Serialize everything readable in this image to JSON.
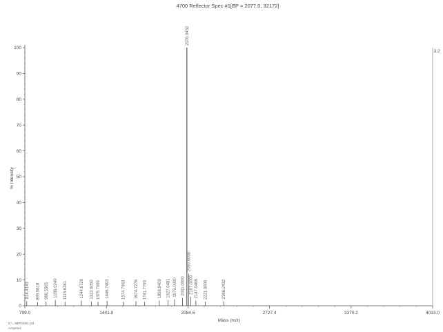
{
  "chart_data": {
    "type": "bar",
    "title": "4700 Reflector Spec #1[BP = 2077.0, 32172]",
    "xlabel": "Mass (m/z)",
    "ylabel": "% Intensity",
    "xlim": [
      799.0,
      4013.0
    ],
    "ylim": [
      0,
      100
    ],
    "xticks": [
      "799.0",
      "1441.8",
      "2084.6",
      "2727.4",
      "3370.2",
      "4013.0"
    ],
    "yticks": [
      "0",
      "10",
      "20",
      "30",
      "40",
      "50",
      "60",
      "70",
      "80",
      "90",
      "100"
    ],
    "right_max_label": "3.2",
    "grid": false,
    "peaks": [
      {
        "mz": 814.4143,
        "intensity": 1.8,
        "label": "814.4143"
      },
      {
        "mz": 899.5618,
        "intensity": 1.4,
        "label": "899.5618"
      },
      {
        "mz": 966.5565,
        "intensity": 1.6,
        "label": "966.5565"
      },
      {
        "mz": 1039.024,
        "intensity": 2.2,
        "label": "1039.0240"
      },
      {
        "mz": 1115.6361,
        "intensity": 1.5,
        "label": "1115.6361"
      },
      {
        "mz": 1244.6728,
        "intensity": 2.0,
        "label": "1244.6728"
      },
      {
        "mz": 1322.605,
        "intensity": 1.7,
        "label": "1322.6050"
      },
      {
        "mz": 1375.7089,
        "intensity": 1.5,
        "label": "1375.7089"
      },
      {
        "mz": 1446.7493,
        "intensity": 1.9,
        "label": "1446.7493"
      },
      {
        "mz": 1574.7983,
        "intensity": 1.6,
        "label": "1574.7983"
      },
      {
        "mz": 1674.7276,
        "intensity": 1.8,
        "label": "1674.7276"
      },
      {
        "mz": 1741.7793,
        "intensity": 1.5,
        "label": "1741.7793"
      },
      {
        "mz": 1858.9409,
        "intensity": 2.0,
        "label": "1858.9409"
      },
      {
        "mz": 1927.0481,
        "intensity": 2.2,
        "label": "1927.0481"
      },
      {
        "mz": 1979.0,
        "intensity": 2.5,
        "label": "1979.0000"
      },
      {
        "mz": 2041.0,
        "intensity": 3.0,
        "label": "2041.0000"
      },
      {
        "mz": 2076.0452,
        "intensity": 100,
        "label": "2076.0452"
      },
      {
        "mz": 2090.0,
        "intensity": 12.5,
        "label": "2090.0000"
      },
      {
        "mz": 2107.0,
        "intensity": 3.5,
        "label": "2107.0000"
      },
      {
        "mz": 2147.0468,
        "intensity": 2.0,
        "label": "2147.0468"
      },
      {
        "mz": 2221.0806,
        "intensity": 1.6,
        "label": "2221.0806"
      },
      {
        "mz": 2366.2432,
        "intensity": 1.8,
        "label": "2366.2432"
      }
    ]
  },
  "footer": {
    "line1": "E:\\...\\MP01661.t2d",
    "line2": "Acquired:"
  }
}
